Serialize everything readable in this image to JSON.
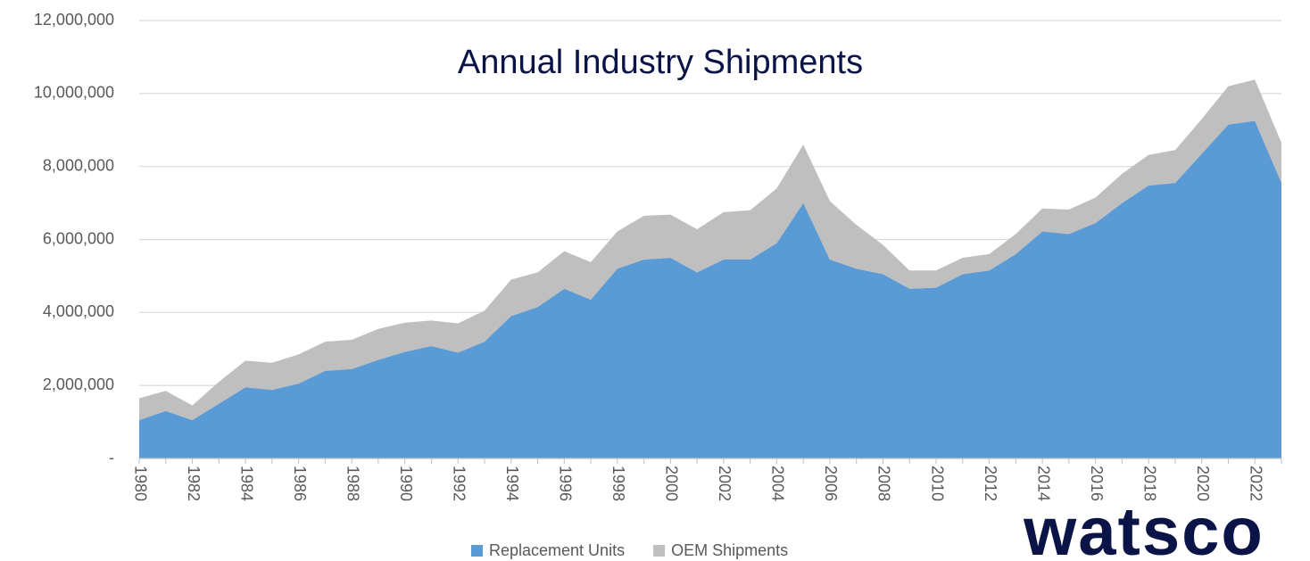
{
  "chart_data": {
    "type": "stacked_area",
    "title": "Annual Industry Shipments",
    "logo": "watsco",
    "categories": [
      "1980",
      null,
      "1982",
      null,
      "1984",
      null,
      "1986",
      null,
      "1988",
      null,
      "1990",
      null,
      "1992",
      null,
      "1994",
      null,
      "1996",
      null,
      "1998",
      null,
      "2000",
      null,
      "2002",
      null,
      "2004",
      null,
      "2006",
      null,
      "2008",
      null,
      "2010",
      null,
      "2012",
      null,
      "2014",
      null,
      "2016",
      null,
      "2018",
      null,
      "2020",
      null,
      "2022",
      null
    ],
    "series": [
      {
        "name": "Replacement Units",
        "color": "#5b9bd5",
        "values": [
          1050000,
          1300000,
          1050000,
          1500000,
          1950000,
          1880000,
          2050000,
          2400000,
          2450000,
          2700000,
          2920000,
          3080000,
          2900000,
          3200000,
          3900000,
          4150000,
          4650000,
          4350000,
          5200000,
          5450000,
          5500000,
          5100000,
          5450000,
          5450000,
          5900000,
          7000000,
          5450000,
          5200000,
          5050000,
          4650000,
          4680000,
          5050000,
          5150000,
          5600000,
          6220000,
          6150000,
          6450000,
          7000000,
          7480000,
          7550000,
          8350000,
          9150000,
          9250000,
          7550000
        ]
      },
      {
        "name": "OEM Shipments",
        "color": "#bfbfbf",
        "values": [
          600000,
          550000,
          400000,
          600000,
          730000,
          740000,
          800000,
          800000,
          800000,
          850000,
          800000,
          700000,
          800000,
          850000,
          1000000,
          950000,
          1030000,
          1030000,
          1020000,
          1200000,
          1180000,
          1180000,
          1300000,
          1350000,
          1500000,
          1600000,
          1600000,
          1200000,
          800000,
          500000,
          470000,
          450000,
          450000,
          550000,
          630000,
          670000,
          700000,
          800000,
          840000,
          900000,
          950000,
          1050000,
          1130000,
          1100000
        ]
      }
    ],
    "ylim": [
      0,
      12000000
    ],
    "yticks": [
      {
        "value": 0,
        "label": "-"
      },
      {
        "value": 2000000,
        "label": "2,000,000"
      },
      {
        "value": 4000000,
        "label": "4,000,000"
      },
      {
        "value": 6000000,
        "label": "6,000,000"
      },
      {
        "value": 8000000,
        "label": "8,000,000"
      },
      {
        "value": 10000000,
        "label": "10,000,000"
      },
      {
        "value": 12000000,
        "label": "12,000,000"
      }
    ],
    "grid": true,
    "legend": "bottom"
  }
}
